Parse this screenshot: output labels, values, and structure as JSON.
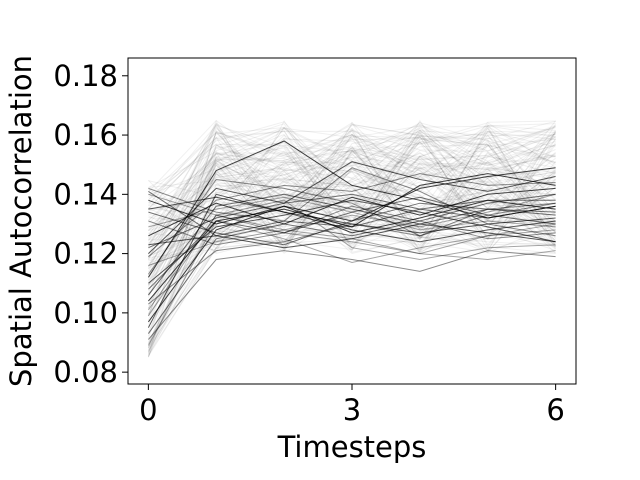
{
  "chart_data": {
    "type": "line",
    "title": "",
    "xlabel": "Timesteps",
    "ylabel": "Spatial Autocorrelation",
    "x": [
      0,
      1,
      2,
      3,
      4,
      5,
      6
    ],
    "xticks": [
      "0",
      "3",
      "6"
    ],
    "yticks": [
      "0.08",
      "0.10",
      "0.12",
      "0.14",
      "0.16",
      "0.18"
    ],
    "xlim": [
      -0.3,
      6.3
    ],
    "ylim": [
      0.076,
      0.186
    ],
    "grid": false,
    "legend": "none",
    "line_color": "#000000",
    "series_count_approx": 300,
    "series": [
      {
        "values": [
          0.089,
          0.131,
          0.125,
          0.117,
          0.122,
          0.126,
          0.13
        ]
      },
      {
        "values": [
          0.091,
          0.118,
          0.121,
          0.118,
          0.114,
          0.121,
          0.119
        ]
      },
      {
        "values": [
          0.093,
          0.125,
          0.13,
          0.126,
          0.131,
          0.137,
          0.14
        ]
      },
      {
        "values": [
          0.095,
          0.14,
          0.134,
          0.13,
          0.127,
          0.13,
          0.132
        ]
      },
      {
        "values": [
          0.097,
          0.128,
          0.136,
          0.131,
          0.142,
          0.146,
          0.149
        ]
      },
      {
        "values": [
          0.101,
          0.133,
          0.127,
          0.124,
          0.12,
          0.126,
          0.128
        ]
      },
      {
        "values": [
          0.103,
          0.121,
          0.124,
          0.13,
          0.126,
          0.133,
          0.137
        ]
      },
      {
        "values": [
          0.106,
          0.136,
          0.14,
          0.135,
          0.13,
          0.135,
          0.134
        ]
      },
      {
        "values": [
          0.11,
          0.129,
          0.133,
          0.138,
          0.134,
          0.129,
          0.124
        ]
      },
      {
        "values": [
          0.112,
          0.148,
          0.158,
          0.143,
          0.138,
          0.132,
          0.136
        ]
      },
      {
        "values": [
          0.116,
          0.124,
          0.128,
          0.125,
          0.12,
          0.118,
          0.121
        ]
      },
      {
        "values": [
          0.119,
          0.138,
          0.143,
          0.141,
          0.147,
          0.143,
          0.144
        ]
      },
      {
        "values": [
          0.122,
          0.132,
          0.137,
          0.14,
          0.135,
          0.138,
          0.138
        ]
      },
      {
        "values": [
          0.123,
          0.126,
          0.122,
          0.125,
          0.13,
          0.127,
          0.124
        ]
      },
      {
        "values": [
          0.126,
          0.137,
          0.13,
          0.139,
          0.133,
          0.14,
          0.142
        ]
      },
      {
        "values": [
          0.129,
          0.135,
          0.139,
          0.134,
          0.128,
          0.131,
          0.129
        ]
      },
      {
        "values": [
          0.131,
          0.123,
          0.127,
          0.136,
          0.131,
          0.125,
          0.127
        ]
      },
      {
        "values": [
          0.134,
          0.127,
          0.123,
          0.131,
          0.137,
          0.135,
          0.133
        ]
      },
      {
        "values": [
          0.135,
          0.139,
          0.134,
          0.128,
          0.124,
          0.128,
          0.131
        ]
      },
      {
        "values": [
          0.138,
          0.13,
          0.136,
          0.127,
          0.132,
          0.138,
          0.135
        ]
      },
      {
        "values": [
          0.14,
          0.133,
          0.128,
          0.133,
          0.129,
          0.134,
          0.14
        ]
      },
      {
        "values": [
          0.142,
          0.134,
          0.131,
          0.149,
          0.141,
          0.13,
          0.126
        ]
      },
      {
        "values": [
          0.141,
          0.126,
          0.131,
          0.129,
          0.135,
          0.132,
          0.136
        ]
      },
      {
        "values": [
          0.12,
          0.142,
          0.137,
          0.151,
          0.145,
          0.141,
          0.146
        ]
      },
      {
        "values": [
          0.104,
          0.131,
          0.135,
          0.129,
          0.143,
          0.147,
          0.143
        ]
      },
      {
        "values": [
          0.099,
          0.133,
          0.138,
          0.122,
          0.118,
          0.122,
          0.123
        ]
      },
      {
        "values": [
          0.113,
          0.145,
          0.142,
          0.137,
          0.126,
          0.135,
          0.137
        ]
      },
      {
        "values": [
          0.108,
          0.131,
          0.127,
          0.134,
          0.139,
          0.133,
          0.13
        ]
      }
    ]
  }
}
